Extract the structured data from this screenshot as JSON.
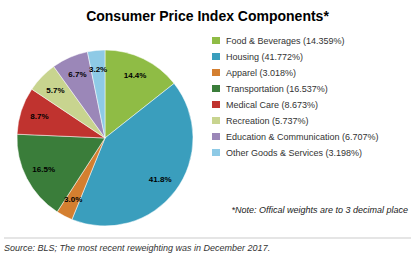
{
  "chart_data": {
    "type": "pie",
    "title": "Consumer Price Index Components*",
    "categories": [
      "Food & Beverages (14.359%)",
      "Housing (41.772%)",
      "Apparel (3.018%)",
      "Transportation (16.537%)",
      "Medical Care (8.673%)",
      "Recreation (5.737%)",
      "Education & Communication (6.707%)",
      "Other Goods & Services (3.198%)"
    ],
    "values": [
      14.359,
      41.772,
      3.018,
      16.537,
      8.673,
      5.737,
      6.707,
      3.198
    ],
    "value_labels": [
      "14.4%",
      "41.8%",
      "3.0%",
      "16.5%",
      "8.7%",
      "5.7%",
      "6.7%",
      "3.2%"
    ],
    "colors": [
      "#8fbc45",
      "#3a9ebd",
      "#d47f30",
      "#3a7d3a",
      "#c0332f",
      "#c8d48f",
      "#9b87b8",
      "#8ecae6"
    ],
    "data_labels": true,
    "legend": "right",
    "annotations": [
      "*Note: Offical weights are to 3 decimal place",
      "Source: BLS; The most recent reweighting was in December 2017."
    ]
  }
}
